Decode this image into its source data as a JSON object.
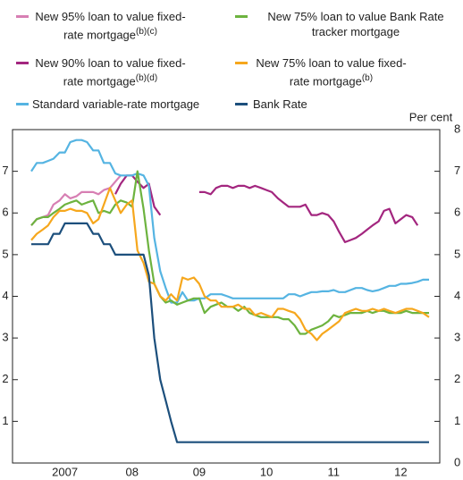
{
  "chart_data": {
    "type": "line",
    "y2label": "Per cent",
    "x": [
      2007,
      2007.08,
      2007.17,
      2007.25,
      2007.33,
      2007.42,
      2007.5,
      2007.58,
      2007.67,
      2007.75,
      2007.83,
      2007.92,
      2008,
      2008.08,
      2008.17,
      2008.25,
      2008.33,
      2008.42,
      2008.5,
      2008.58,
      2008.67,
      2008.75,
      2008.83,
      2008.92,
      2009,
      2009.08,
      2009.17,
      2009.25,
      2009.33,
      2009.42,
      2009.5,
      2009.58,
      2009.67,
      2009.75,
      2009.83,
      2009.92,
      2010,
      2010.08,
      2010.17,
      2010.25,
      2010.33,
      2010.42,
      2010.5,
      2010.58,
      2010.67,
      2010.75,
      2010.83,
      2010.92,
      2011,
      2011.08,
      2011.17,
      2011.25,
      2011.33,
      2011.42,
      2011.5,
      2011.58,
      2011.67,
      2011.75,
      2011.83,
      2011.92,
      2012,
      2012.08,
      2012.17,
      2012.25,
      2012.33,
      2012.42,
      2012.5,
      2012.58,
      2012.67,
      2012.75,
      2012.83,
      2012.92
    ],
    "series": [
      {
        "name": "New 95% loan to value fixed-rate mortgage",
        "note": "(b)(c)",
        "color": "#d77fb3",
        "values": [
          5.7,
          5.85,
          5.9,
          5.95,
          6.2,
          6.3,
          6.45,
          6.35,
          6.4,
          6.5,
          6.5,
          6.5,
          6.45,
          6.55,
          6.6,
          6.75,
          6.9,
          null,
          null,
          null,
          null,
          null,
          null,
          null,
          null,
          null,
          null,
          null,
          null,
          null,
          null,
          null,
          null,
          null,
          null,
          null,
          null,
          null,
          null,
          null,
          null,
          null,
          null,
          null,
          null,
          null,
          null,
          null,
          null,
          null,
          null,
          null,
          null,
          null,
          null,
          null,
          null,
          null,
          null,
          null,
          null,
          null,
          null,
          null,
          null,
          null,
          null,
          null,
          null,
          null,
          null,
          null
        ]
      },
      {
        "name": "New 90% loan to value fixed-rate mortgage",
        "note": "(b)(d)",
        "color": "#a3267f",
        "values": [
          null,
          null,
          null,
          null,
          null,
          null,
          null,
          null,
          null,
          null,
          null,
          null,
          null,
          null,
          null,
          6.45,
          6.7,
          6.9,
          6.9,
          6.75,
          6.6,
          6.7,
          6.15,
          5.95,
          null,
          null,
          null,
          null,
          null,
          null,
          6.5,
          6.5,
          6.45,
          6.6,
          6.65,
          6.65,
          6.6,
          6.65,
          6.65,
          6.6,
          6.65,
          6.6,
          6.55,
          6.5,
          6.35,
          6.25,
          6.15,
          6.15,
          6.15,
          6.2,
          5.95,
          5.95,
          6.0,
          5.95,
          5.8,
          5.55,
          5.3,
          5.35,
          5.4,
          5.5,
          5.6,
          5.7,
          5.8,
          6.05,
          6.1,
          5.75,
          5.85,
          5.95,
          5.9,
          5.7,
          null,
          null
        ]
      },
      {
        "name": "Standard variable-rate mortgage",
        "color": "#55b4e2",
        "values": [
          7.0,
          7.2,
          7.2,
          7.25,
          7.3,
          7.45,
          7.45,
          7.7,
          7.75,
          7.75,
          7.7,
          7.5,
          7.5,
          7.2,
          7.2,
          6.95,
          6.9,
          6.9,
          6.9,
          6.95,
          6.9,
          6.65,
          5.4,
          4.6,
          4.2,
          3.85,
          3.85,
          4.1,
          3.9,
          3.9,
          3.95,
          3.95,
          4.05,
          4.05,
          4.05,
          4.0,
          3.95,
          3.95,
          3.95,
          3.95,
          3.95,
          3.95,
          3.95,
          3.95,
          3.95,
          3.95,
          4.05,
          4.05,
          4.0,
          4.05,
          4.1,
          4.1,
          4.12,
          4.12,
          4.15,
          4.1,
          4.1,
          4.15,
          4.2,
          4.2,
          4.15,
          4.12,
          4.15,
          4.2,
          4.25,
          4.25,
          4.3,
          4.3,
          4.32,
          4.35,
          4.4,
          4.4
        ]
      },
      {
        "name": "New 75% loan to value Bank Rate tracker mortgage",
        "color": "#6db33f",
        "values": [
          5.7,
          5.85,
          5.9,
          5.9,
          6.0,
          6.1,
          6.2,
          6.25,
          6.3,
          6.2,
          6.25,
          6.3,
          6.0,
          6.05,
          6.0,
          6.2,
          6.3,
          6.25,
          6.15,
          7.0,
          6.1,
          5.1,
          4.3,
          4.0,
          3.85,
          3.9,
          3.8,
          3.85,
          3.9,
          3.95,
          3.95,
          3.6,
          3.75,
          3.8,
          3.85,
          3.75,
          3.75,
          3.65,
          3.75,
          3.6,
          3.55,
          3.5,
          3.5,
          3.5,
          3.5,
          3.45,
          3.45,
          3.3,
          3.1,
          3.1,
          3.2,
          3.25,
          3.3,
          3.4,
          3.55,
          3.5,
          3.55,
          3.6,
          3.6,
          3.6,
          3.65,
          3.6,
          3.65,
          3.65,
          3.6,
          3.6,
          3.6,
          3.65,
          3.6,
          3.6,
          3.6,
          3.6
        ]
      },
      {
        "name": "New 75% loan to value fixed-rate mortgage",
        "note": "(b)",
        "color": "#f6a71d",
        "values": [
          5.35,
          5.5,
          5.6,
          5.7,
          5.9,
          6.05,
          6.05,
          6.1,
          6.05,
          6.05,
          6.0,
          5.75,
          5.85,
          6.2,
          6.6,
          6.3,
          6.0,
          6.2,
          6.3,
          5.1,
          4.8,
          4.35,
          4.3,
          4.0,
          3.9,
          4.05,
          3.9,
          4.45,
          4.4,
          4.45,
          4.3,
          4.0,
          3.9,
          3.9,
          3.75,
          3.75,
          3.75,
          3.8,
          3.7,
          3.7,
          3.55,
          3.6,
          3.55,
          3.5,
          3.7,
          3.7,
          3.65,
          3.6,
          3.45,
          3.2,
          3.1,
          2.95,
          3.1,
          3.2,
          3.3,
          3.4,
          3.6,
          3.65,
          3.7,
          3.65,
          3.65,
          3.7,
          3.65,
          3.7,
          3.65,
          3.6,
          3.65,
          3.7,
          3.7,
          3.65,
          3.6,
          3.5
        ]
      },
      {
        "name": "Bank Rate",
        "color": "#1c4f7c",
        "values": [
          5.25,
          5.25,
          5.25,
          5.25,
          5.5,
          5.5,
          5.75,
          5.75,
          5.75,
          5.75,
          5.75,
          5.5,
          5.5,
          5.25,
          5.25,
          5.0,
          5.0,
          5.0,
          5.0,
          5.0,
          5.0,
          4.5,
          3.0,
          2.0,
          1.5,
          1.0,
          0.5,
          0.5,
          0.5,
          0.5,
          0.5,
          0.5,
          0.5,
          0.5,
          0.5,
          0.5,
          0.5,
          0.5,
          0.5,
          0.5,
          0.5,
          0.5,
          0.5,
          0.5,
          0.5,
          0.5,
          0.5,
          0.5,
          0.5,
          0.5,
          0.5,
          0.5,
          0.5,
          0.5,
          0.5,
          0.5,
          0.5,
          0.5,
          0.5,
          0.5,
          0.5,
          0.5,
          0.5,
          0.5,
          0.5,
          0.5,
          0.5,
          0.5,
          0.5,
          0.5,
          0.5,
          0.5
        ]
      }
    ],
    "xlim": [
      2006.72,
      2013.08
    ],
    "xticks": [
      {
        "value": 2007.5,
        "label": "2007"
      },
      {
        "value": 2008.5,
        "label": "08"
      },
      {
        "value": 2009.5,
        "label": "09"
      },
      {
        "value": 2010.5,
        "label": "10"
      },
      {
        "value": 2011.5,
        "label": "11"
      },
      {
        "value": 2012.5,
        "label": "12"
      }
    ],
    "ylim": [
      0,
      8
    ],
    "yticks": [
      1,
      2,
      3,
      4,
      5,
      6,
      7
    ],
    "y2lim": [
      0,
      8
    ],
    "y2ticks": [
      0,
      1,
      2,
      3,
      4,
      5,
      6,
      7,
      8
    ]
  }
}
